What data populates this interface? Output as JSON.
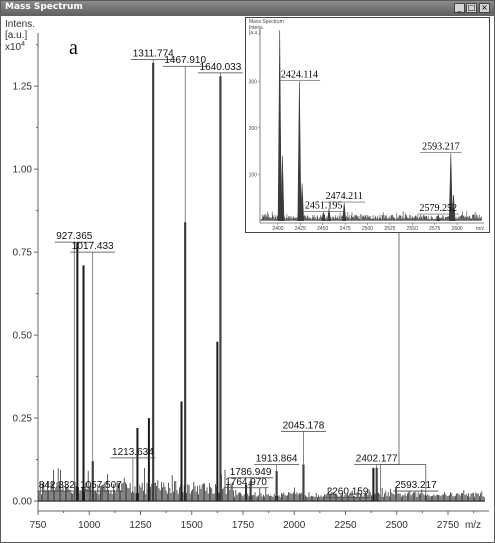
{
  "window": {
    "title": "Mass Spectrum",
    "minimize_glyph": "_",
    "maximize_glyph": "□",
    "close_glyph": "×"
  },
  "panel_label": "a",
  "chart_data": [
    {
      "type": "line",
      "title": "",
      "ylabel_lines": [
        "Intens.",
        "[a.u.]"
      ],
      "y_multiplier": "x10",
      "y_multiplier_exp": "4",
      "xlabel": "m/z",
      "xlim": [
        750,
        2950
      ],
      "ylim": [
        -0.03,
        1.38
      ],
      "xticks": [
        750,
        1000,
        1250,
        1500,
        1750,
        2000,
        2250,
        2500,
        2750
      ],
      "yticks": [
        "0.00",
        "0.25",
        "0.50",
        "0.75",
        "1.00",
        "1.25"
      ],
      "peaks": [
        {
          "x": 942,
          "y": 0.78
        },
        {
          "x": 972,
          "y": 0.71
        },
        {
          "x": 1017,
          "y": 0.12
        },
        {
          "x": 1235,
          "y": 0.22
        },
        {
          "x": 1291,
          "y": 0.25
        },
        {
          "x": 1312,
          "y": 1.32
        },
        {
          "x": 1450,
          "y": 0.3
        },
        {
          "x": 1468,
          "y": 0.84
        },
        {
          "x": 1625,
          "y": 0.48
        },
        {
          "x": 1640,
          "y": 1.28
        },
        {
          "x": 1765,
          "y": 0.05
        },
        {
          "x": 1787,
          "y": 0.06
        },
        {
          "x": 1914,
          "y": 0.09
        },
        {
          "x": 2045,
          "y": 0.11
        },
        {
          "x": 2386,
          "y": 0.1
        },
        {
          "x": 2402,
          "y": 0.1
        }
      ],
      "labels": [
        {
          "text": "842.332",
          "x": 842,
          "y": 0.03
        },
        {
          "text": "927.365",
          "x": 927,
          "y": 0.78
        },
        {
          "text": "1017.433",
          "x": 1017,
          "y": 0.75
        },
        {
          "text": "1057.507",
          "x": 1057,
          "y": 0.03
        },
        {
          "text": "1213.634",
          "x": 1213,
          "y": 0.13
        },
        {
          "text": "1311.774",
          "x": 1312,
          "y": 1.33
        },
        {
          "text": "1467.910",
          "x": 1468,
          "y": 1.31
        },
        {
          "text": "1640.033",
          "x": 1640,
          "y": 1.29
        },
        {
          "text": "1764.970",
          "x": 1765,
          "y": 0.04
        },
        {
          "text": "1786.949",
          "x": 1787,
          "y": 0.07
        },
        {
          "text": "1913.864",
          "x": 1914,
          "y": 0.11
        },
        {
          "text": "2045.178",
          "x": 2045,
          "y": 0.21
        },
        {
          "text": "2260.159",
          "x": 2260,
          "y": 0.01
        },
        {
          "text": "2402.177",
          "x": 2402,
          "y": 0.11
        },
        {
          "text": "2593.217",
          "x": 2593,
          "y": 0.03
        }
      ]
    },
    {
      "type": "line",
      "title": "Mass Spectrum",
      "ylabel_lines": [
        "Intens.",
        "[a.u.]"
      ],
      "xlabel": "m/z",
      "xlim": [
        2380,
        2630
      ],
      "ylim": [
        -5,
        415
      ],
      "xticks": [
        2400,
        2425,
        2450,
        2475,
        2500,
        2525,
        2550,
        2575,
        2600
      ],
      "yticks": [
        100,
        200,
        300
      ],
      "peaks": [
        {
          "x": 2402,
          "y": 410
        },
        {
          "x": 2405,
          "y": 140
        },
        {
          "x": 2424,
          "y": 300
        },
        {
          "x": 2427,
          "y": 80
        },
        {
          "x": 2451,
          "y": 18
        },
        {
          "x": 2457,
          "y": 25
        },
        {
          "x": 2474,
          "y": 38
        },
        {
          "x": 2579,
          "y": 12
        },
        {
          "x": 2593,
          "y": 145
        },
        {
          "x": 2596,
          "y": 55
        }
      ],
      "labels": [
        {
          "text": "2424.114",
          "x": 2424,
          "y": 300
        },
        {
          "text": "2451.195",
          "x": 2451,
          "y": 18
        },
        {
          "text": "2474.211",
          "x": 2474,
          "y": 38
        },
        {
          "text": "2579.252",
          "x": 2579,
          "y": 12
        },
        {
          "text": "2593.217",
          "x": 2593,
          "y": 145
        }
      ]
    }
  ]
}
